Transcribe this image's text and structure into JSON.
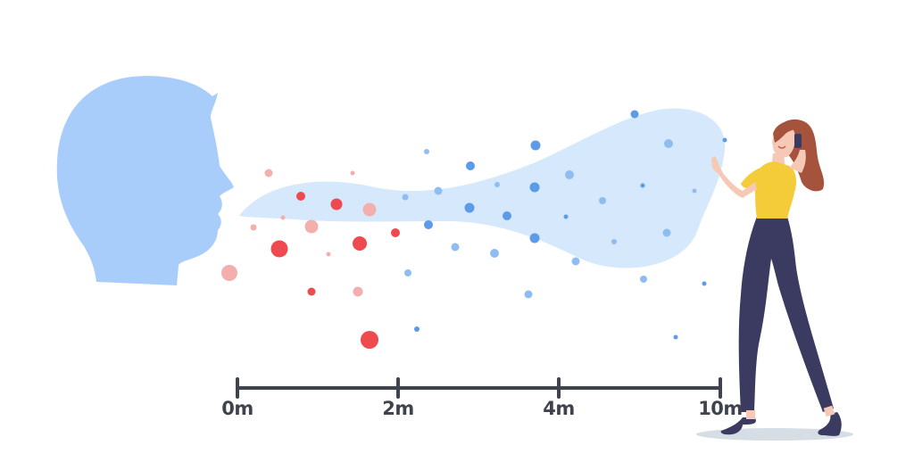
{
  "scale": {
    "ticks": [
      {
        "label": "0m"
      },
      {
        "label": "2m"
      },
      {
        "label": "4m"
      },
      {
        "label": "10m"
      }
    ]
  },
  "colors": {
    "head": "#a9cdfa",
    "aerosol_cloud": "#d6e8fb",
    "aerosol_particle": "#5b9be8",
    "droplet_large": "#ee4a4f",
    "droplet_faded": "#f5aeae",
    "scale_line": "#3f434e",
    "shirt": "#f4cc3a",
    "pants": "#3b3a60",
    "hair": "#a5533c",
    "skin": "#f6c9b7"
  }
}
